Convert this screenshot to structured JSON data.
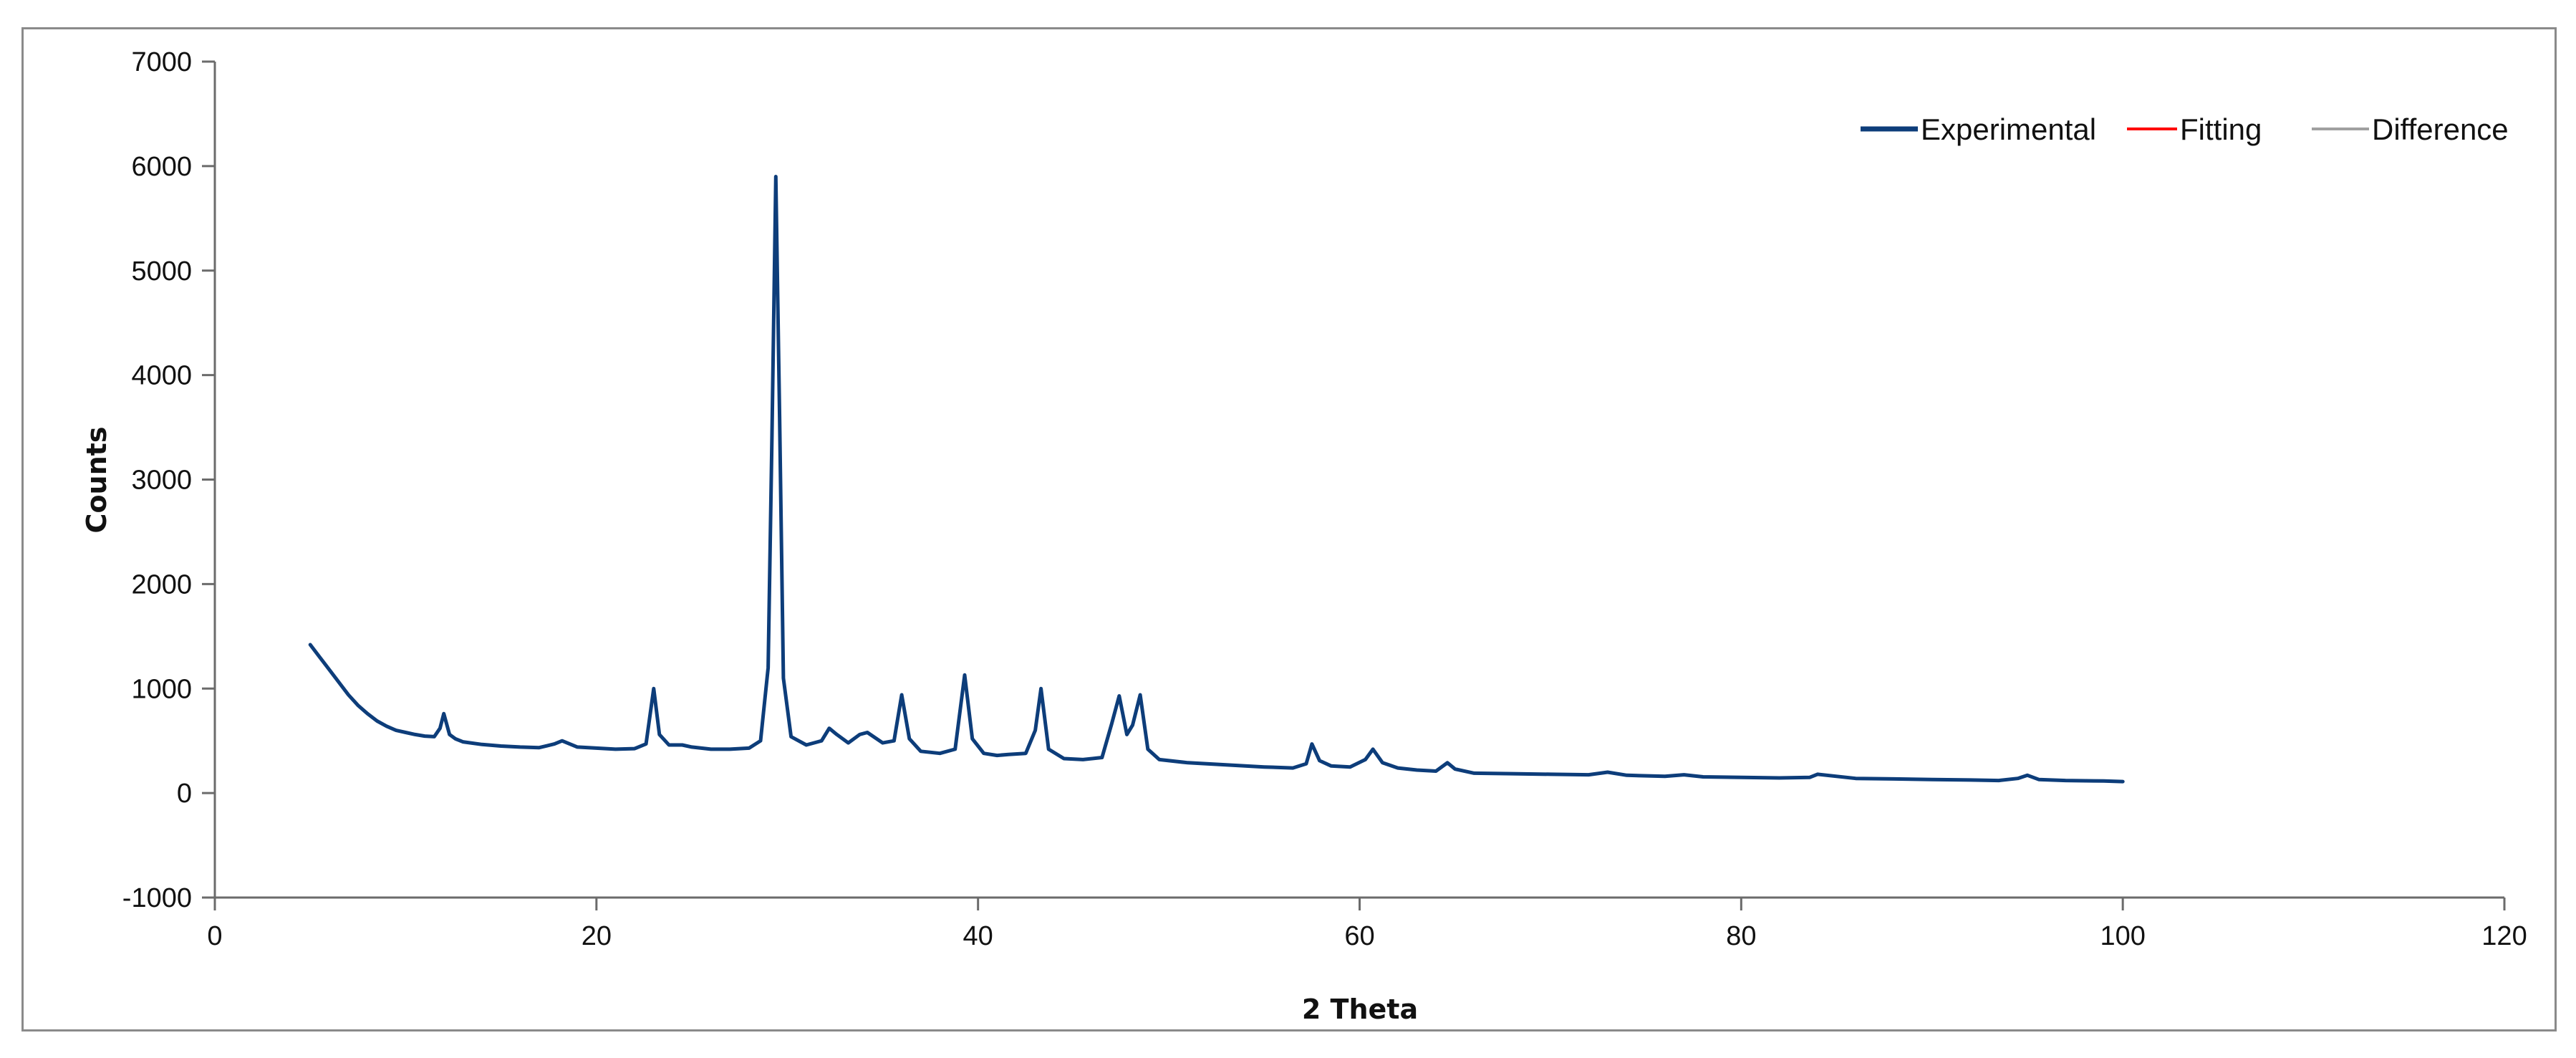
{
  "chart_data": {
    "type": "line",
    "title": "",
    "xlabel": "2 Theta",
    "ylabel": "Counts",
    "xlim": [
      0,
      120
    ],
    "ylim": [
      -1000,
      7000
    ],
    "x_ticks": [
      "0",
      "20",
      "40",
      "60",
      "80",
      "100",
      "120"
    ],
    "y_ticks": [
      "-1000",
      "0",
      "1000",
      "2000",
      "3000",
      "4000",
      "5000",
      "6000",
      "7000"
    ],
    "grid": false,
    "legend_position": "top-right",
    "series": [
      {
        "name": "Experimental",
        "color": "#0d3d7a",
        "x": [
          5,
          5.5,
          6,
          6.5,
          7,
          7.5,
          8,
          8.5,
          9,
          9.5,
          10,
          10.5,
          11,
          11.5,
          11.8,
          12,
          12.3,
          12.6,
          13,
          14,
          15,
          16,
          17,
          17.8,
          18.2,
          19,
          20,
          21,
          22,
          22.6,
          23,
          23.3,
          23.8,
          24.5,
          25,
          26,
          27,
          28,
          28.6,
          29,
          29.2,
          29.4,
          29.6,
          29.8,
          30.2,
          31,
          31.8,
          32.2,
          32.6,
          33.2,
          33.8,
          34.2,
          35,
          35.6,
          36,
          36.4,
          37,
          38,
          38.8,
          39.3,
          39.7,
          40.3,
          41,
          41.6,
          42.5,
          43,
          43.3,
          43.7,
          44.5,
          45.5,
          46.5,
          47,
          47.4,
          47.8,
          48.1,
          48.5,
          48.9,
          49.5,
          51,
          53,
          55,
          56.5,
          57.2,
          57.5,
          57.9,
          58.5,
          59.5,
          60.3,
          60.7,
          61.2,
          62,
          63,
          64,
          64.6,
          65,
          66,
          68,
          70,
          72,
          73,
          74,
          76,
          77,
          78,
          80,
          82,
          83.6,
          84,
          86,
          88,
          90,
          92,
          93.5,
          94.5,
          95,
          95.6,
          97,
          99,
          100
        ],
        "y": [
          1420,
          1300,
          1180,
          1060,
          940,
          840,
          760,
          690,
          640,
          600,
          580,
          560,
          545,
          540,
          620,
          760,
          560,
          520,
          490,
          465,
          450,
          440,
          435,
          470,
          500,
          440,
          430,
          420,
          425,
          470,
          1000,
          560,
          460,
          460,
          440,
          420,
          420,
          430,
          500,
          1200,
          3400,
          5900,
          3600,
          1100,
          540,
          460,
          500,
          620,
          560,
          480,
          560,
          580,
          480,
          500,
          940,
          520,
          400,
          380,
          420,
          1130,
          520,
          380,
          360,
          370,
          380,
          600,
          1000,
          420,
          330,
          320,
          340,
          660,
          930,
          560,
          650,
          940,
          420,
          320,
          290,
          270,
          250,
          240,
          280,
          470,
          310,
          260,
          250,
          320,
          420,
          290,
          240,
          220,
          210,
          290,
          230,
          190,
          185,
          180,
          175,
          200,
          170,
          160,
          175,
          155,
          150,
          145,
          150,
          180,
          140,
          135,
          130,
          125,
          120,
          140,
          170,
          130,
          120,
          115,
          110
        ]
      },
      {
        "name": "Fitting",
        "color": "#ff0000",
        "x": [],
        "y": []
      },
      {
        "name": "Difference",
        "color": "#a0a0a0",
        "x": [],
        "y": []
      }
    ]
  }
}
